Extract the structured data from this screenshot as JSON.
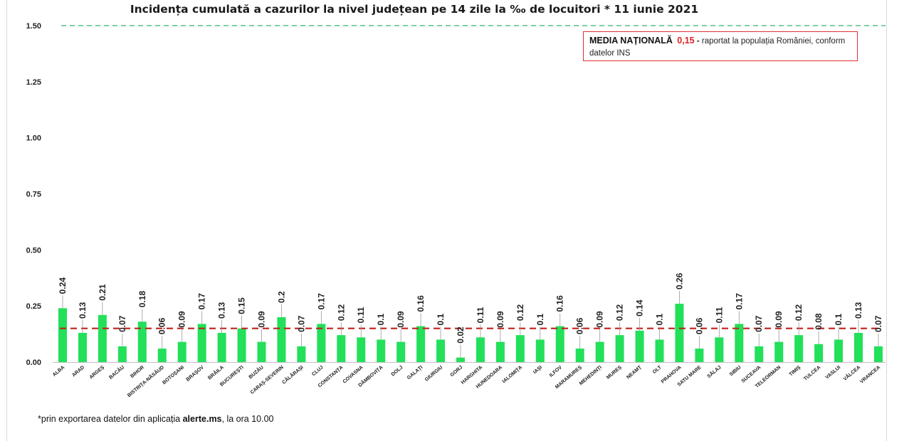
{
  "title": "Incidența cumulată a cazurilor la nivel județean pe 14 zile la ‰ de locuitori *  11 iunie 2021",
  "media_box": {
    "label": "MEDIA NAȚIONALĂ",
    "value": "0,15",
    "dash": " - ",
    "text": "raportat la populația României, conform datelor INS"
  },
  "footnote": {
    "prefix": "*prin exportarea datelor din aplicația ",
    "app": "alerte.ms",
    "suffix": ", la ora 10.00"
  },
  "colors": {
    "bar": "#22e05a",
    "mean_line": "#c0201c",
    "top_line": "#33b36b",
    "axis": "#bfbfbf",
    "label": "#222222"
  },
  "chart_data": {
    "type": "bar",
    "title": "Incidența cumulată a cazurilor la nivel județean pe 14 zile la ‰ de locuitori *  11 iunie 2021",
    "xlabel": "",
    "ylabel": "",
    "ylim": [
      0,
      1.5
    ],
    "yticks": [
      "0.00",
      "0.25",
      "0.50",
      "0.75",
      "1.00",
      "1.25",
      "1.50"
    ],
    "grid": false,
    "national_mean": 0.15,
    "reference_line": 1.5,
    "categories": [
      "ALBA",
      "ARAD",
      "ARGEȘ",
      "BACĂU",
      "BIHOR",
      "BISTRIȚA-NĂSĂUD",
      "BOTOȘANI",
      "BRAȘOV",
      "BRĂILA",
      "BUCUREȘTI",
      "BUZĂU",
      "CARAȘ-SEVERIN",
      "CĂLĂRAȘI",
      "CLUJ",
      "CONSTANȚA",
      "COVASNA",
      "DÂMBOVIȚA",
      "DOLJ",
      "GALAȚI",
      "GIURGIU",
      "GORJ",
      "HARGHITA",
      "HUNEDOARA",
      "IALOMIȚA",
      "IAȘI",
      "ILFOV",
      "MARAMUREȘ",
      "MEHEDINȚI",
      "MUREȘ",
      "NEAMȚ",
      "OLT",
      "PRAHOVA",
      "SATU MARE",
      "SĂLAJ",
      "SIBIU",
      "SUCEAVA",
      "TELEORMAN",
      "TIMIȘ",
      "TULCEA",
      "VASLUI",
      "VÂLCEA",
      "VRANCEA"
    ],
    "values": [
      0.24,
      0.13,
      0.21,
      0.07,
      0.18,
      0.06,
      0.09,
      0.17,
      0.13,
      0.15,
      0.09,
      0.2,
      0.07,
      0.17,
      0.12,
      0.11,
      0.1,
      0.09,
      0.16,
      0.1,
      0.02,
      0.11,
      0.09,
      0.12,
      0.1,
      0.16,
      0.06,
      0.09,
      0.12,
      0.14,
      0.1,
      0.26,
      0.06,
      0.11,
      0.17,
      0.07,
      0.09,
      0.12,
      0.08,
      0.1,
      0.13,
      0.07
    ],
    "value_labels": [
      "0.24",
      "0.13",
      "0.21",
      "0.07",
      "0.18",
      "0.06",
      "0.09",
      "0.17",
      "0.13",
      "0.15",
      "0.09",
      "0.2",
      "0.07",
      "0.17",
      "0.12",
      "0.11",
      "0.1",
      "0.09",
      "0.16",
      "0.1",
      "0.02",
      "0.11",
      "0.09",
      "0.12",
      "0.1",
      "0.16",
      "0.06",
      "0.09",
      "0.12",
      "0.14",
      "0.1",
      "0.26",
      "0.06",
      "0.11",
      "0.17",
      "0.07",
      "0.09",
      "0.12",
      "0.08",
      "0.1",
      "0.13",
      "0.07"
    ]
  }
}
